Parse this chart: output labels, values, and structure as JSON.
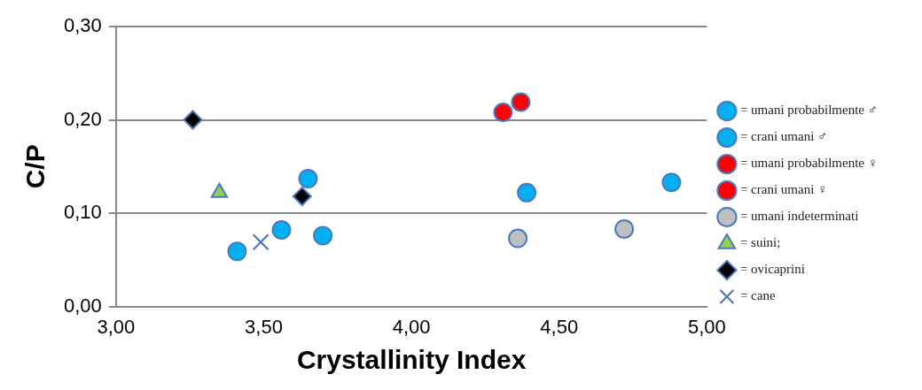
{
  "chart_data": {
    "type": "scatter",
    "xlabel": "Crystallinity Index",
    "ylabel": "C/P",
    "xlim": [
      3.0,
      5.0
    ],
    "xticks": [
      {
        "value": 3.0,
        "label": "3,00"
      },
      {
        "value": 3.5,
        "label": "3,50"
      },
      {
        "value": 4.0,
        "label": "4,00"
      },
      {
        "value": 4.5,
        "label": "4,50"
      },
      {
        "value": 5.0,
        "label": "5,00"
      }
    ],
    "ylim": [
      0,
      0.3
    ],
    "yticks": [
      {
        "value": 0,
        "label": "0,00"
      },
      {
        "value": 0.1,
        "label": "0,10"
      },
      {
        "value": 0.2,
        "label": "0,20"
      },
      {
        "value": 0.3,
        "label": "0,30"
      }
    ],
    "grid": "y",
    "legend": "right",
    "series": [
      {
        "name": "= umani probabilmente ♂",
        "color": "#00b0f0",
        "marker": "circle",
        "x": [
          3.65,
          3.7,
          4.39,
          4.88
        ],
        "values": [
          0.137,
          0.076,
          0.122,
          0.133
        ]
      },
      {
        "name": "= crani umani ♂",
        "color": "#00b0f0",
        "marker": "circle",
        "x": [
          3.41,
          3.56
        ],
        "values": [
          0.059,
          0.082
        ]
      },
      {
        "name": "= umani probabilmente ♀",
        "color": "#ff0000",
        "marker": "circle",
        "x": [
          4.31
        ],
        "values": [
          0.208
        ]
      },
      {
        "name": "= crani umani ♀",
        "color": "#ff0000",
        "marker": "circle",
        "x": [
          4.37
        ],
        "values": [
          0.219
        ]
      },
      {
        "name": "= umani indeterminati",
        "color": "#bfbfbf",
        "marker": "circle",
        "x": [
          4.36,
          4.72
        ],
        "values": [
          0.073,
          0.083
        ]
      },
      {
        "name": "= suini;",
        "color": "#92d050",
        "marker": "triangle",
        "x": [
          3.35
        ],
        "values": [
          0.122
        ]
      },
      {
        "name": "= ovicaprini",
        "color": "#000000",
        "marker": "diamond",
        "x": [
          3.26,
          3.63
        ],
        "values": [
          0.2,
          0.118
        ]
      },
      {
        "name": "= cane",
        "color": "#4472c4",
        "marker": "cross",
        "x": [
          3.49
        ],
        "values": [
          0.069
        ]
      }
    ]
  }
}
